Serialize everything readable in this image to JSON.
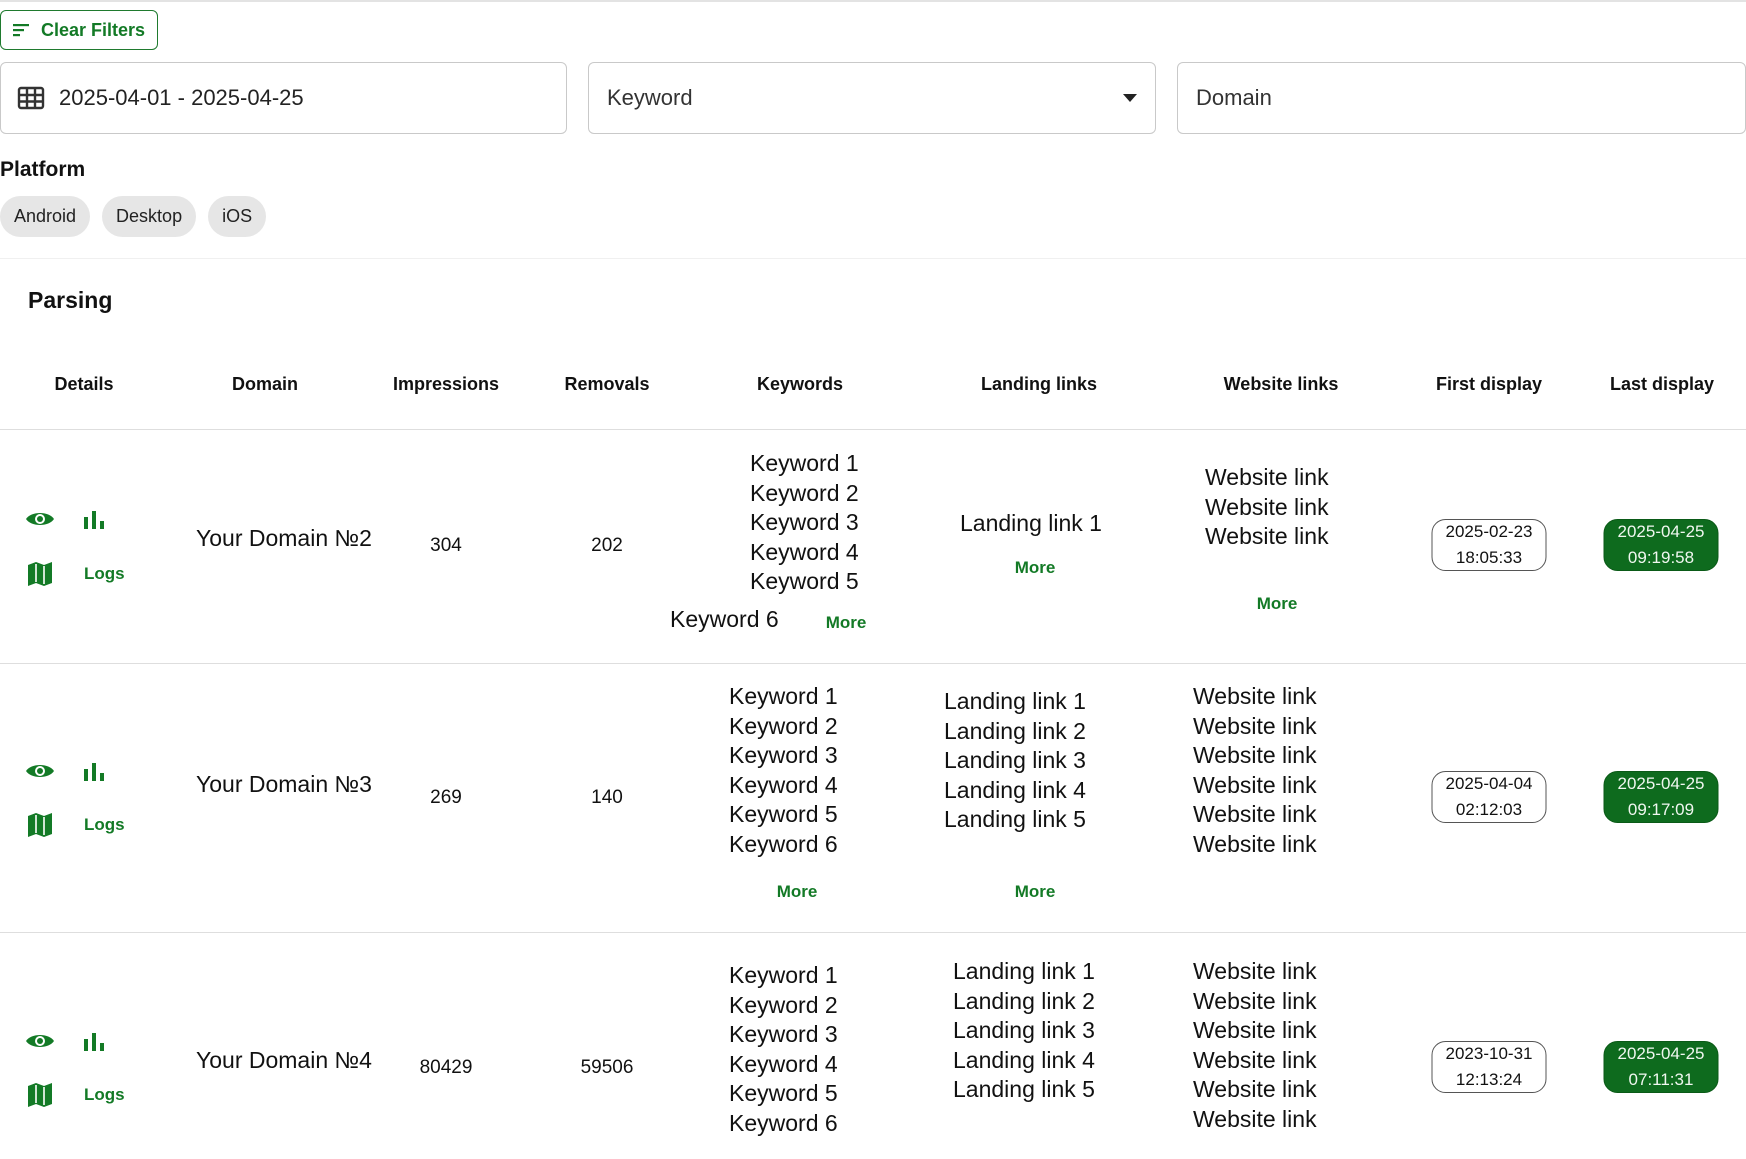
{
  "filters": {
    "clear_label": "Clear Filters",
    "date_range": "2025-04-01 - 2025-04-25",
    "keyword_placeholder": "Keyword",
    "domain_placeholder": "Domain",
    "platform_label": "Platform",
    "platforms": [
      "Android",
      "Desktop",
      "iOS"
    ]
  },
  "section_title": "Parsing",
  "columns": [
    "Details",
    "Domain",
    "Impressions",
    "Removals",
    "Keywords",
    "Landing links",
    "Website links",
    "First display",
    "Last display"
  ],
  "logs_label": "Logs",
  "more_label": "More",
  "rows": [
    {
      "domain": "Your Domain №2",
      "impressions": "304",
      "removals": "202",
      "keywords": [
        "Keyword 1",
        "Keyword 2",
        "Keyword 3",
        "Keyword 4",
        "Keyword 5",
        "Keyword 6"
      ],
      "landing_links": [
        "Landing link 1"
      ],
      "website_links": [
        "Website link",
        "Website link",
        "Website link"
      ],
      "first_display": {
        "date": "2025-02-23",
        "time": "18:05:33"
      },
      "last_display": {
        "date": "2025-04-25",
        "time": "09:19:58"
      }
    },
    {
      "domain": "Your Domain №3",
      "impressions": "269",
      "removals": "140",
      "keywords": [
        "Keyword 1",
        "Keyword 2",
        "Keyword 3",
        "Keyword 4",
        "Keyword 5",
        "Keyword 6"
      ],
      "landing_links": [
        "Landing link 1",
        "Landing link 2",
        "Landing link 3",
        "Landing link 4",
        "Landing link 5"
      ],
      "website_links": [
        "Website link",
        "Website link",
        "Website link",
        "Website link",
        "Website link",
        "Website link"
      ],
      "first_display": {
        "date": "2025-04-04",
        "time": "02:12:03"
      },
      "last_display": {
        "date": "2025-04-25",
        "time": "09:17:09"
      }
    },
    {
      "domain": "Your Domain №4",
      "impressions": "80429",
      "removals": "59506",
      "keywords": [
        "Keyword 1",
        "Keyword 2",
        "Keyword 3",
        "Keyword 4",
        "Keyword 5",
        "Keyword 6"
      ],
      "landing_links": [
        "Landing link 1",
        "Landing link 2",
        "Landing link 3",
        "Landing link 4",
        "Landing link 5"
      ],
      "website_links": [
        "Website link",
        "Website link",
        "Website link",
        "Website link",
        "Website link",
        "Website link"
      ],
      "first_display": {
        "date": "2023-10-31",
        "time": "12:13:24"
      },
      "last_display": {
        "date": "2025-04-25",
        "time": "07:11:31"
      }
    }
  ],
  "colors": {
    "accent": "#137a26",
    "last_pill": "#0e6b1e"
  }
}
